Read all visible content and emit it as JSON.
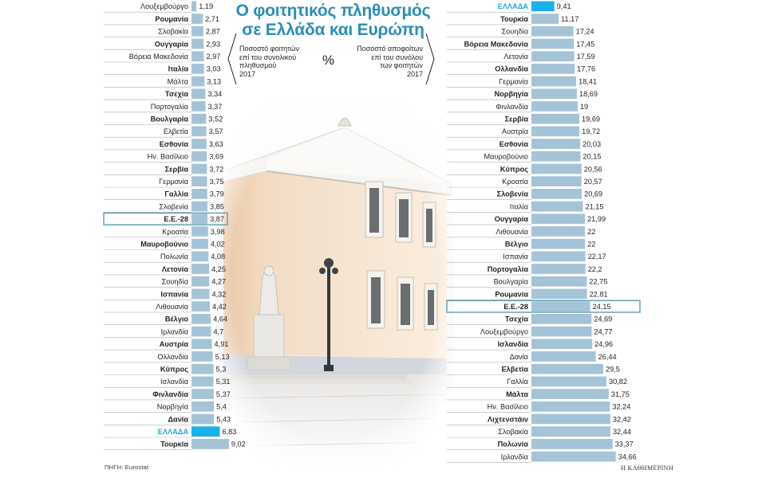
{
  "title": {
    "line1": "Ο φοιτητικός πληθυσμός",
    "line2": "σε Ελλάδα και Ευρώπη"
  },
  "subtitle_left": [
    "Ποσοστό φοιτητών",
    "επί του συνολικού",
    "πληθυσμού",
    "2017"
  ],
  "subtitle_right": [
    "Ποσοστό αποφοίτων",
    "επί του συνόλου",
    "των φοιτητών",
    "2017"
  ],
  "unit_symbol": "%",
  "source": "ΠΗΓΗ: Eurostat",
  "publisher": "Η ΚΑΘΗΜΕΡΙΝΗ",
  "colors": {
    "bar": "#a5c3d6",
    "highlight_bar": "#18b2e8",
    "highlight_label": "#18a8dc",
    "highlight_border": "#5c9ab6",
    "row_line": "#aab2b8",
    "title": "#2a8fb8"
  },
  "chart_data": [
    {
      "type": "bar",
      "orientation": "horizontal",
      "title": "Ποσοστό φοιτητών επί του συνολικού πληθυσμού 2017",
      "unit": "%",
      "highlight": [
        "ΕΛΛΑΔΑ"
      ],
      "outlined": [
        "Ε.Ε.-28"
      ],
      "categories": [
        "Λουξεμβούργο",
        "Ρουμανία",
        "Σλοβακία",
        "Ουγγαρία",
        "Βόρεια Μακεδονία",
        "Ιταλία",
        "Μάλτα",
        "Τσεχία",
        "Πορτογαλία",
        "Βουλγαρία",
        "Ελβετία",
        "Εσθονία",
        "Ην. Βασίλειο",
        "Σερβία",
        "Γερμανία",
        "Γαλλία",
        "Σλοβενία",
        "Ε.Ε.-28",
        "Κροατία",
        "Μαυροβούνιο",
        "Πολωνία",
        "Λετονία",
        "Σουηδία",
        "Ισπανία",
        "Λιθουανία",
        "Βέλγιο",
        "Ιρλανδία",
        "Αυστρία",
        "Ολλανδία",
        "Κύπρος",
        "Ισλανδία",
        "Φινλανδία",
        "Νορβηγία",
        "Δανία",
        "ΕΛΛΑΔΑ",
        "Τουρκία"
      ],
      "value_labels": [
        "1,19",
        "2,71",
        "2,87",
        "2,93",
        "2,97",
        "3,03",
        "3,13",
        "3,34",
        "3,37",
        "3,52",
        "3,57",
        "3,63",
        "3,69",
        "3,72",
        "3,75",
        "3,79",
        "3,85",
        "3,87",
        "3,98",
        "4,02",
        "4,08",
        "4,25",
        "4,27",
        "4,32",
        "4,42",
        "4,64",
        "4,7",
        "4,91",
        "5,13",
        "5,3",
        "5,31",
        "5,37",
        "5,4",
        "5,43",
        "6,83",
        "9,02"
      ],
      "values": [
        1.19,
        2.71,
        2.87,
        2.93,
        2.97,
        3.03,
        3.13,
        3.34,
        3.37,
        3.52,
        3.57,
        3.63,
        3.69,
        3.72,
        3.75,
        3.79,
        3.85,
        3.87,
        3.98,
        4.02,
        4.08,
        4.25,
        4.27,
        4.32,
        4.42,
        4.64,
        4.7,
        4.91,
        5.13,
        5.3,
        5.31,
        5.37,
        5.4,
        5.43,
        6.83,
        9.02
      ],
      "bold": [
        false,
        true,
        false,
        true,
        false,
        true,
        false,
        true,
        false,
        true,
        false,
        true,
        false,
        true,
        false,
        true,
        false,
        true,
        false,
        true,
        false,
        true,
        false,
        true,
        false,
        true,
        false,
        true,
        false,
        true,
        false,
        true,
        false,
        true,
        true,
        true
      ]
    },
    {
      "type": "bar",
      "orientation": "horizontal",
      "title": "Ποσοστό αποφοίτων επί του συνόλου των φοιτητών 2017",
      "unit": "%",
      "highlight": [
        "ΕΛΛΑΔΑ"
      ],
      "outlined": [
        "Ε.Ε.-28"
      ],
      "categories": [
        "ΕΛΛΑΔΑ",
        "Τουρκία",
        "Σουηδία",
        "Βόρεια Μακεδονία",
        "Λετονία",
        "Ολλανδία",
        "Γερμανία",
        "Νορβηγία",
        "Φινλανδία",
        "Σερβία",
        "Αυστρία",
        "Εσθονία",
        "Μαυροβούνιο",
        "Κύπρος",
        "Κροατία",
        "Σλοβενία",
        "Ιταλία",
        "Ουγγαρία",
        "Λιθουανία",
        "Βέλγιο",
        "Ισπανία",
        "Πορτογαλία",
        "Βουλγαρία",
        "Ρουμανία",
        "Ε.Ε.-28",
        "Τσεχία",
        "Λουξεμβούργο",
        "Ισλανδία",
        "Δανία",
        "Ελβετία",
        "Γαλλία",
        "Μάλτα",
        "Ην. Βασίλειο",
        "Λιχτενστάιν",
        "Σλοβακία",
        "Πολωνία",
        "Ιρλανδία"
      ],
      "value_labels": [
        "9,41",
        "11,17",
        "17,24",
        "17,45",
        "17,59",
        "17,76",
        "18,41",
        "18,69",
        "19",
        "19,69",
        "19,72",
        "20,03",
        "20,15",
        "20,56",
        "20,57",
        "20,69",
        "21,15",
        "21,99",
        "22",
        "22",
        "22,17",
        "22,2",
        "22,75",
        "22,81",
        "24,15",
        "24,69",
        "24,77",
        "24,96",
        "26,44",
        "29,5",
        "30,82",
        "31,75",
        "32,24",
        "32,42",
        "32,44",
        "33,37",
        "34,66"
      ],
      "values": [
        9.41,
        11.17,
        17.24,
        17.45,
        17.59,
        17.76,
        18.41,
        18.69,
        19,
        19.69,
        19.72,
        20.03,
        20.15,
        20.56,
        20.57,
        20.69,
        21.15,
        21.99,
        22,
        22,
        22.17,
        22.2,
        22.75,
        22.81,
        24.15,
        24.69,
        24.77,
        24.96,
        26.44,
        29.5,
        30.82,
        31.75,
        32.24,
        32.42,
        32.44,
        33.37,
        34.66
      ],
      "bold": [
        true,
        true,
        false,
        true,
        false,
        true,
        false,
        true,
        false,
        true,
        false,
        true,
        false,
        true,
        false,
        true,
        false,
        true,
        false,
        true,
        false,
        true,
        false,
        true,
        true,
        true,
        false,
        true,
        false,
        true,
        false,
        true,
        false,
        true,
        false,
        true,
        false
      ]
    }
  ]
}
